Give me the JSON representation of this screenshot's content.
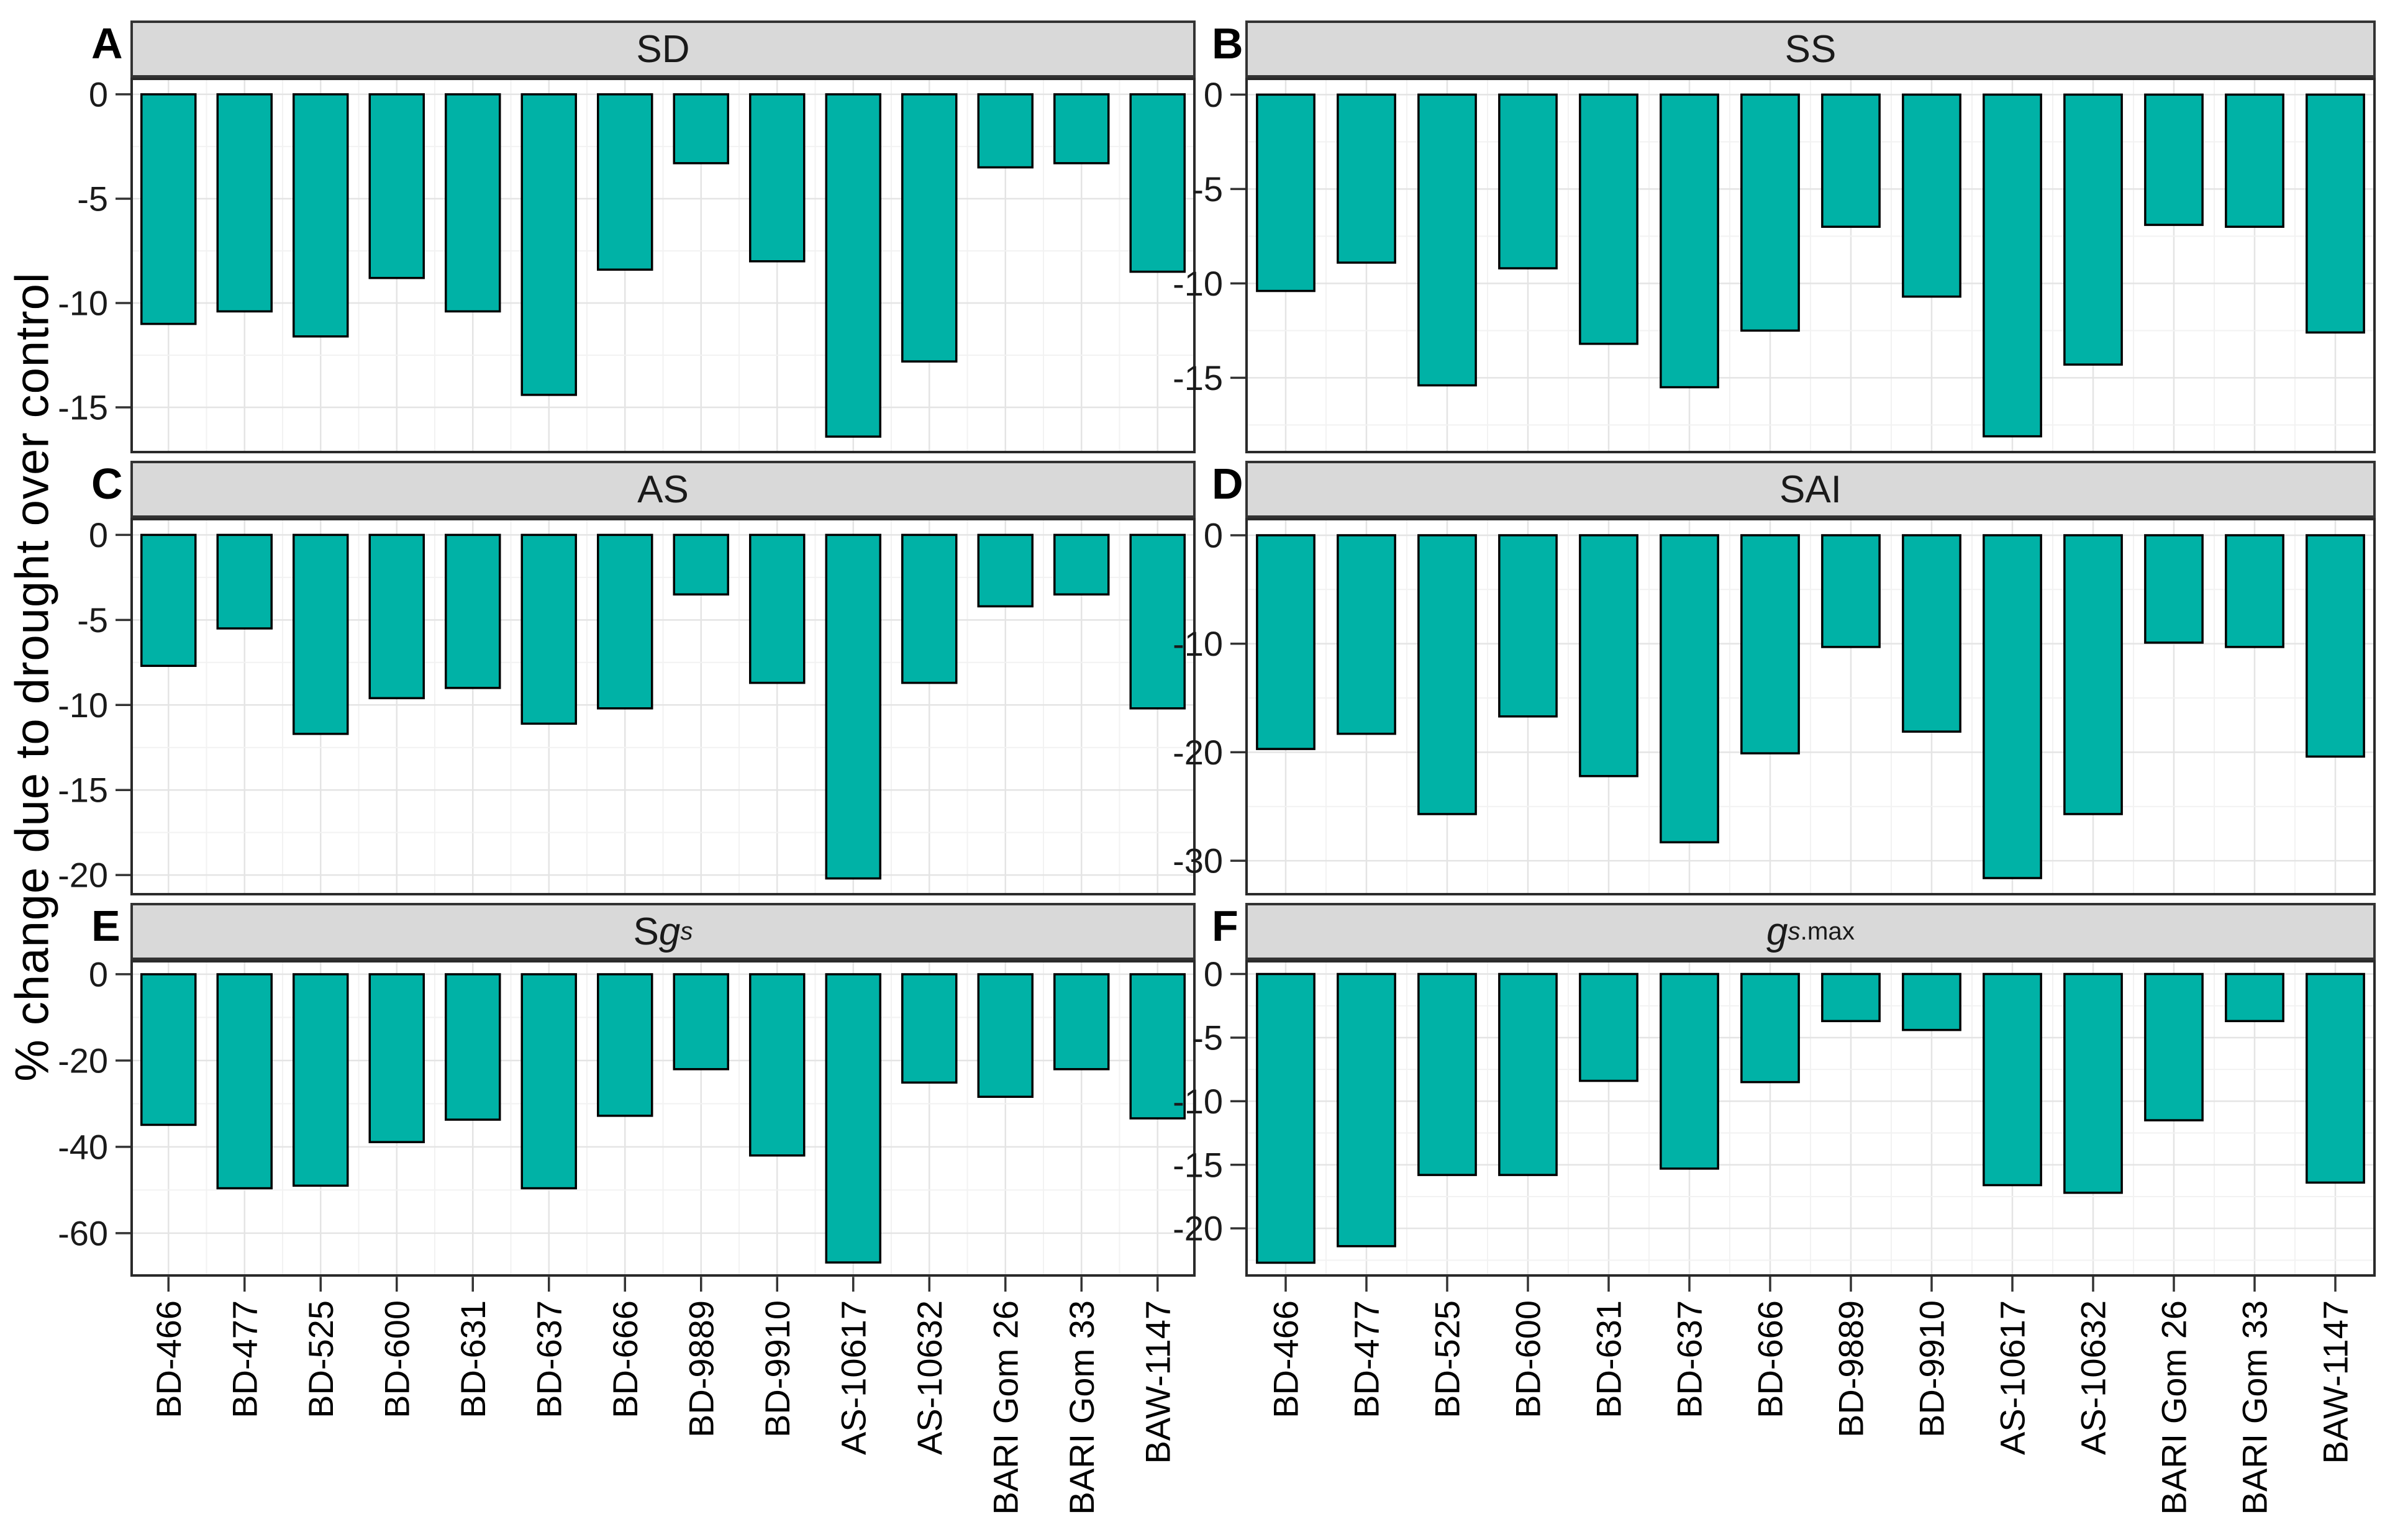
{
  "figure_title": "",
  "style": {
    "bar_fill": "#00b2a6",
    "bar_stroke": "#000000",
    "strip_bg": "#d9d9d9",
    "strip_border": "#333333",
    "panel_border": "#2a2a2a",
    "grid_major": "#e4e4e4",
    "grid_minor": "#f2f2f2",
    "tick_color": "#333333"
  },
  "chart_data": {
    "type": "bar",
    "title": "",
    "ylabel": "% change due to drought over control",
    "xlabel": "",
    "grid": true,
    "legend": false,
    "categories": [
      "BD-466",
      "BD-477",
      "BD-525",
      "BD-600",
      "BD-631",
      "BD-637",
      "BD-666",
      "BD-9889",
      "BD-9910",
      "AS-10617",
      "AS-10632",
      "BARI Gom 26",
      "BARI Gom 33",
      "BAW-1147"
    ],
    "panels": [
      {
        "letter": "A",
        "label": "SD",
        "label_segments": [
          {
            "t": "SD"
          }
        ],
        "ylim": [
          -17.2,
          0.8
        ],
        "yticks": [
          0,
          -5,
          -10,
          -15
        ],
        "values": [
          -11.0,
          -10.4,
          -11.6,
          -8.8,
          -10.4,
          -14.4,
          -8.4,
          -3.3,
          -8.0,
          -16.4,
          -12.8,
          -3.5,
          -3.3,
          -8.5
        ]
      },
      {
        "letter": "B",
        "label": "SS",
        "label_segments": [
          {
            "t": "SS"
          }
        ],
        "ylim": [
          -19.0,
          0.9
        ],
        "yticks": [
          0,
          -5,
          -10,
          -15
        ],
        "values": [
          -10.4,
          -8.9,
          -15.4,
          -9.2,
          -13.2,
          -15.5,
          -12.5,
          -7.0,
          -10.7,
          -18.1,
          -14.3,
          -6.9,
          -7.0,
          -12.6
        ]
      },
      {
        "letter": "C",
        "label": "AS",
        "label_segments": [
          {
            "t": "AS"
          }
        ],
        "ylim": [
          -21.2,
          1.0
        ],
        "yticks": [
          0,
          -5,
          -10,
          -15,
          -20
        ],
        "values": [
          -7.7,
          -5.5,
          -11.7,
          -9.6,
          -9.0,
          -11.1,
          -10.2,
          -3.5,
          -8.7,
          -20.2,
          -8.7,
          -4.2,
          -3.5,
          -10.2
        ]
      },
      {
        "letter": "D",
        "label": "SAI",
        "label_segments": [
          {
            "t": "SAI"
          }
        ],
        "ylim": [
          -33.2,
          1.6
        ],
        "yticks": [
          0,
          -10,
          -20,
          -30
        ],
        "values": [
          -19.7,
          -18.3,
          -25.7,
          -16.7,
          -22.2,
          -28.3,
          -20.1,
          -10.3,
          -18.1,
          -31.6,
          -25.7,
          -9.9,
          -10.3,
          -20.4
        ]
      },
      {
        "letter": "E",
        "label": "Sgs",
        "label_segments": [
          {
            "t": "S"
          },
          {
            "t": "g",
            "italic": true
          },
          {
            "t": "s",
            "italic": true,
            "sub": true
          }
        ],
        "ylim": [
          -70.1,
          3.3
        ],
        "yticks": [
          0,
          -20,
          -40,
          -60
        ],
        "values": [
          -34.9,
          -49.6,
          -49.0,
          -38.9,
          -33.7,
          -49.6,
          -32.8,
          -22.0,
          -42.0,
          -66.8,
          -25.1,
          -28.4,
          -22.0,
          -33.4
        ]
      },
      {
        "letter": "F",
        "label": "gs.max",
        "label_segments": [
          {
            "t": "g",
            "italic": true
          },
          {
            "t": "s",
            "italic": true,
            "sub": true
          },
          {
            "t": ".max",
            "sub": true
          }
        ],
        "ylim": [
          -23.8,
          1.1
        ],
        "yticks": [
          0,
          -5,
          -10,
          -15,
          -20
        ],
        "values": [
          -22.7,
          -21.4,
          -15.8,
          -15.8,
          -8.4,
          -15.3,
          -8.5,
          -3.7,
          -4.4,
          -16.6,
          -17.2,
          -11.5,
          -3.7,
          -16.4
        ]
      }
    ]
  }
}
